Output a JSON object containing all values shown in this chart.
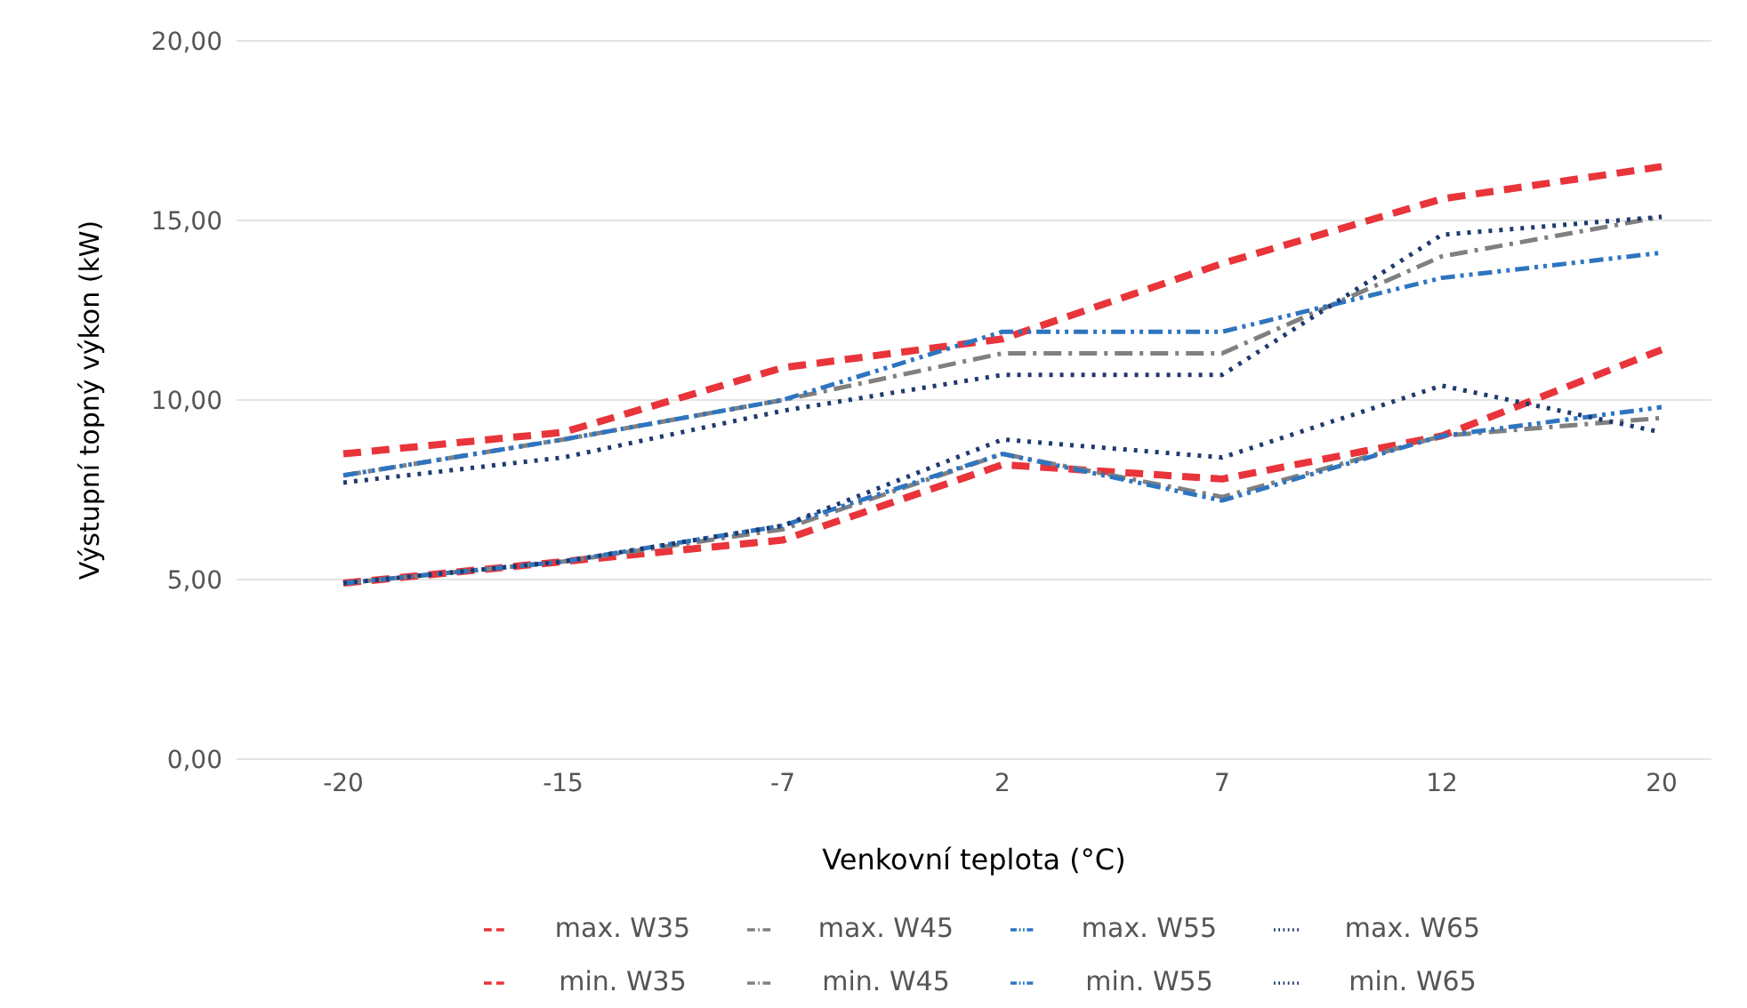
{
  "chart_data": {
    "type": "line",
    "xlabel": "Venkovní teplota (°C)",
    "ylabel": "Výstupní topný výkon (kW)",
    "categories": [
      "-20",
      "-15",
      "-7",
      "2",
      "7",
      "12",
      "20"
    ],
    "ylim": [
      0,
      20
    ],
    "yticks": [
      {
        "value": 0,
        "label": "0,00"
      },
      {
        "value": 5,
        "label": "5,00"
      },
      {
        "value": 10,
        "label": "10,00"
      },
      {
        "value": 15,
        "label": "15,00"
      },
      {
        "value": 20,
        "label": "20,00"
      }
    ],
    "grid": "y",
    "legend": "bottom",
    "marker": "none",
    "series": [
      {
        "name": "max. W35",
        "color": "#e8343a",
        "line_style": "dashed",
        "values": [
          8.5,
          9.1,
          10.9,
          11.7,
          13.8,
          15.6,
          16.5
        ]
      },
      {
        "name": "max. W45",
        "color": "#808080",
        "line_style": "dashdot",
        "values": [
          7.9,
          8.9,
          10.0,
          11.3,
          11.3,
          14.0,
          15.1
        ]
      },
      {
        "name": "max. W55",
        "color": "#2e75c0",
        "line_style": "dashdotdot",
        "values": [
          7.9,
          8.9,
          10.0,
          11.9,
          11.9,
          13.4,
          14.1
        ]
      },
      {
        "name": "max. W65",
        "color": "#1f3a6e",
        "line_style": "dotted",
        "values": [
          7.7,
          8.4,
          9.7,
          10.7,
          10.7,
          14.6,
          15.1
        ]
      },
      {
        "name": "min. W35",
        "color": "#e8343a",
        "line_style": "dashed",
        "values": [
          4.9,
          5.5,
          6.1,
          8.2,
          7.8,
          9.0,
          11.4
        ]
      },
      {
        "name": "min. W45",
        "color": "#808080",
        "line_style": "dashdot",
        "values": [
          4.9,
          5.5,
          6.4,
          8.5,
          7.3,
          9.0,
          9.5
        ]
      },
      {
        "name": "min. W55",
        "color": "#2e75c0",
        "line_style": "dashdotdot",
        "values": [
          4.9,
          5.5,
          6.5,
          8.5,
          7.2,
          9.0,
          9.8
        ]
      },
      {
        "name": "min. W65",
        "color": "#1f3a6e",
        "line_style": "dotted",
        "values": [
          4.9,
          5.5,
          6.5,
          8.9,
          8.4,
          10.4,
          9.1
        ]
      }
    ]
  }
}
